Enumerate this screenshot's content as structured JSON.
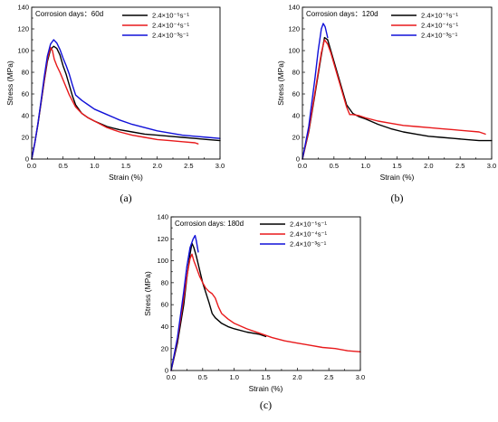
{
  "chart_data": [
    {
      "type": "line",
      "panel_label": "(a)",
      "annotation": "Corrosion days：60d",
      "xlabel": "Strain (%)",
      "ylabel": "Stress (MPa)",
      "xlim": [
        0,
        3.0
      ],
      "ylim": [
        0,
        140
      ],
      "xticks": [
        "0.0",
        "0.5",
        "1.0",
        "1.5",
        "2.0",
        "2.5",
        "3.0"
      ],
      "yticks": [
        "0",
        "20",
        "40",
        "60",
        "80",
        "100",
        "120",
        "140"
      ],
      "legend_position": "top-right",
      "series": [
        {
          "name": "2.4×10⁻⁵s⁻¹",
          "color": "#000000",
          "x": [
            0,
            0.05,
            0.1,
            0.15,
            0.2,
            0.25,
            0.3,
            0.35,
            0.4,
            0.45,
            0.5,
            0.55,
            0.6,
            0.65,
            0.7,
            0.8,
            0.9,
            1.0,
            1.2,
            1.4,
            1.6,
            1.8,
            2.0,
            2.2,
            2.4,
            2.6,
            2.8,
            3.0
          ],
          "y": [
            0,
            15,
            32,
            52,
            72,
            90,
            101,
            104,
            102,
            96,
            86,
            78,
            68,
            58,
            50,
            42,
            38,
            35,
            30,
            27,
            25,
            23,
            22,
            21,
            20,
            19,
            18,
            17
          ]
        },
        {
          "name": "2.4×10⁻⁴s⁻¹",
          "color": "#e8191b",
          "x": [
            0,
            0.05,
            0.1,
            0.15,
            0.2,
            0.25,
            0.3,
            0.33,
            0.36,
            0.4,
            0.45,
            0.5,
            0.55,
            0.6,
            0.7,
            0.8,
            0.9,
            1.0,
            1.2,
            1.4,
            1.6,
            1.8,
            2.0,
            2.2,
            2.4,
            2.6,
            2.65
          ],
          "y": [
            0,
            15,
            33,
            53,
            73,
            92,
            103,
            100,
            92,
            86,
            80,
            73,
            66,
            59,
            48,
            42,
            38,
            35,
            29,
            25,
            22,
            20,
            18,
            17,
            16,
            15,
            14
          ]
        },
        {
          "name": "2.4×10⁻³s⁻¹",
          "color": "#1010d8",
          "x": [
            0,
            0.05,
            0.1,
            0.15,
            0.2,
            0.25,
            0.3,
            0.35,
            0.4,
            0.45,
            0.5,
            0.55,
            0.6,
            0.65,
            0.7,
            0.8,
            0.9,
            1.0,
            1.2,
            1.4,
            1.6,
            1.8,
            2.0,
            2.2,
            2.4,
            2.6,
            2.8,
            3.0
          ],
          "y": [
            0,
            15,
            33,
            54,
            76,
            95,
            106,
            110,
            107,
            101,
            93,
            86,
            78,
            68,
            59,
            54,
            50,
            46,
            41,
            36,
            32,
            29,
            26,
            24,
            22,
            21,
            20,
            19
          ]
        }
      ]
    },
    {
      "type": "line",
      "panel_label": "(b)",
      "annotation": "Corrosion days：120d",
      "xlabel": "Strain (%)",
      "ylabel": "Stress (MPa)",
      "xlim": [
        0,
        3.0
      ],
      "ylim": [
        0,
        140
      ],
      "xticks": [
        "0.0",
        "0.5",
        "1.0",
        "1.5",
        "2.0",
        "2.5",
        "3.0"
      ],
      "yticks": [
        "0",
        "20",
        "40",
        "60",
        "80",
        "100",
        "120",
        "140"
      ],
      "legend_position": "top-right",
      "series": [
        {
          "name": "2.4×10⁻⁵s⁻¹",
          "color": "#000000",
          "x": [
            0,
            0.1,
            0.2,
            0.3,
            0.35,
            0.4,
            0.45,
            0.5,
            0.6,
            0.7,
            0.8,
            0.9,
            1.0,
            1.2,
            1.4,
            1.6,
            1.8,
            2.0,
            2.2,
            2.4,
            2.6,
            2.8,
            3.0
          ],
          "y": [
            0,
            25,
            60,
            96,
            112,
            110,
            100,
            90,
            70,
            50,
            42,
            39,
            37,
            32,
            28,
            25,
            23,
            21,
            20,
            19,
            18,
            17,
            17
          ]
        },
        {
          "name": "2.4×10⁻⁴s⁻¹",
          "color": "#e8191b",
          "x": [
            0,
            0.1,
            0.2,
            0.3,
            0.35,
            0.4,
            0.45,
            0.5,
            0.6,
            0.7,
            0.75,
            0.8,
            0.9,
            1.0,
            1.2,
            1.4,
            1.6,
            1.8,
            2.0,
            2.2,
            2.4,
            2.6,
            2.8,
            2.9
          ],
          "y": [
            0,
            26,
            62,
            98,
            110,
            106,
            98,
            88,
            68,
            48,
            41,
            41,
            40,
            38,
            35,
            33,
            31,
            30,
            29,
            28,
            27,
            26,
            25,
            23
          ]
        },
        {
          "name": "2.4×10⁻³s⁻¹",
          "color": "#1010d8",
          "x": [
            0,
            0.1,
            0.2,
            0.25,
            0.3,
            0.33,
            0.36,
            0.4
          ],
          "y": [
            0,
            30,
            75,
            100,
            120,
            125,
            122,
            112
          ]
        }
      ]
    },
    {
      "type": "line",
      "panel_label": "(c)",
      "annotation": "Corrosion days: 180d",
      "xlabel": "Strain (%)",
      "ylabel": "Stress (MPa)",
      "xlim": [
        0,
        3.0
      ],
      "ylim": [
        0,
        140
      ],
      "xticks": [
        "0.0",
        "0.5",
        "1.0",
        "1.5",
        "2.0",
        "2.5",
        "3.0"
      ],
      "yticks": [
        "0",
        "20",
        "40",
        "60",
        "80",
        "100",
        "120",
        "140"
      ],
      "legend_position": "top-right",
      "series": [
        {
          "name": "2.4×10⁻⁵s⁻¹",
          "color": "#000000",
          "x": [
            0,
            0.1,
            0.2,
            0.25,
            0.3,
            0.33,
            0.36,
            0.4,
            0.45,
            0.5,
            0.55,
            0.6,
            0.65,
            0.7,
            0.8,
            0.9,
            1.0,
            1.2,
            1.4,
            1.5
          ],
          "y": [
            0,
            25,
            60,
            85,
            106,
            116,
            112,
            104,
            92,
            80,
            71,
            62,
            52,
            48,
            43,
            40,
            38,
            35,
            33,
            31
          ]
        },
        {
          "name": "2.4×10⁻⁴s⁻¹",
          "color": "#e8191b",
          "x": [
            0,
            0.1,
            0.2,
            0.25,
            0.3,
            0.33,
            0.36,
            0.4,
            0.45,
            0.5,
            0.55,
            0.6,
            0.65,
            0.7,
            0.75,
            0.8,
            0.9,
            1.0,
            1.2,
            1.4,
            1.6,
            1.8,
            2.0,
            2.2,
            2.4,
            2.6,
            2.8,
            3.0
          ],
          "y": [
            0,
            28,
            66,
            86,
            102,
            106,
            100,
            94,
            86,
            80,
            75,
            72,
            70,
            66,
            58,
            52,
            47,
            43,
            38,
            34,
            30,
            27,
            25,
            23,
            21,
            20,
            18,
            17
          ]
        },
        {
          "name": "2.4×10⁻³s⁻¹",
          "color": "#1010d8",
          "x": [
            0,
            0.1,
            0.2,
            0.25,
            0.3,
            0.35,
            0.38,
            0.4,
            0.43
          ],
          "y": [
            0,
            30,
            72,
            95,
            112,
            120,
            123,
            118,
            108
          ]
        }
      ]
    }
  ]
}
